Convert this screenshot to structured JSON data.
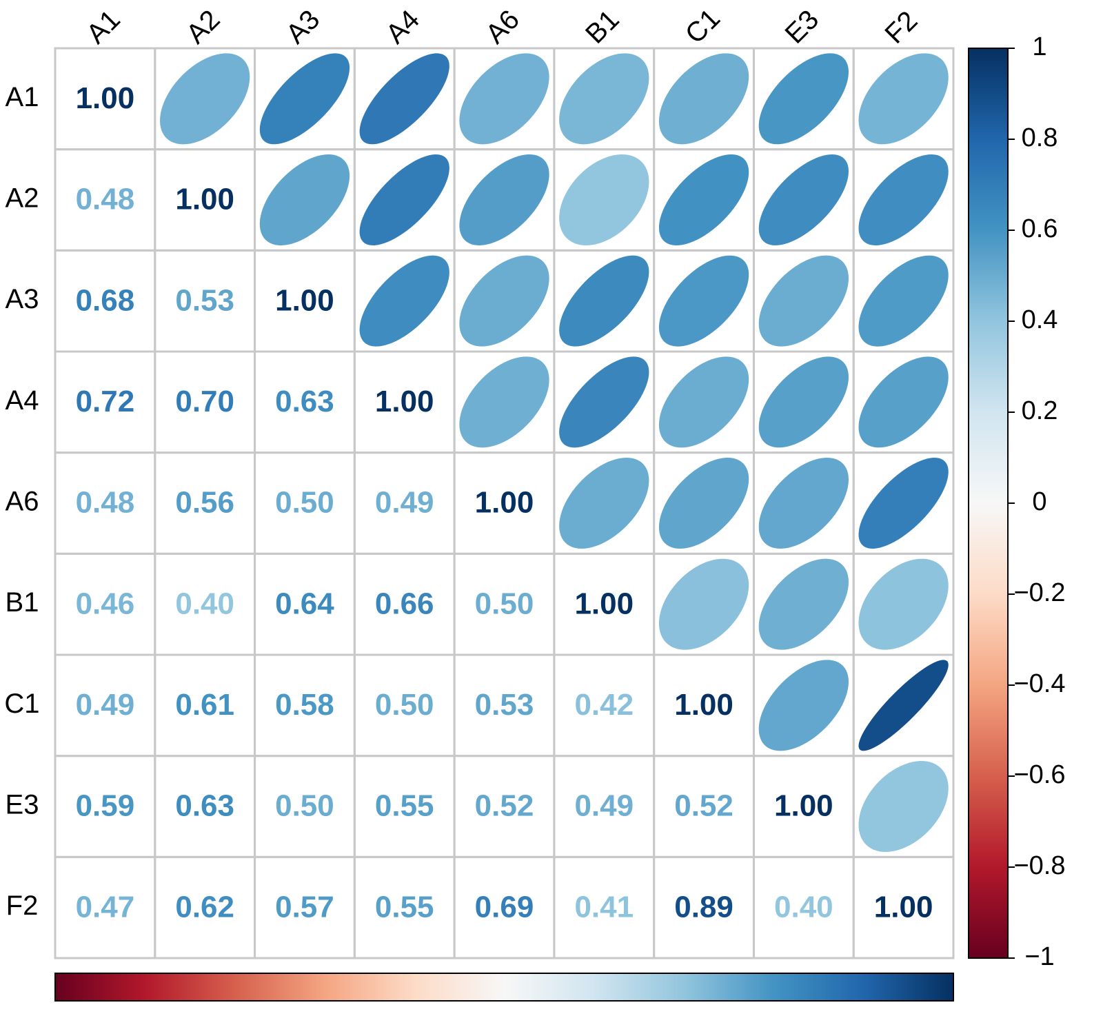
{
  "chart_data": {
    "type": "corrplot",
    "variables": [
      "A1",
      "A2",
      "A3",
      "A4",
      "A6",
      "B1",
      "C1",
      "E3",
      "F2"
    ],
    "matrix": [
      [
        1.0,
        0.48,
        0.68,
        0.72,
        0.48,
        0.46,
        0.49,
        0.59,
        0.47
      ],
      [
        0.48,
        1.0,
        0.53,
        0.7,
        0.56,
        0.4,
        0.61,
        0.63,
        0.62
      ],
      [
        0.68,
        0.53,
        1.0,
        0.63,
        0.5,
        0.64,
        0.58,
        0.5,
        0.57
      ],
      [
        0.72,
        0.7,
        0.63,
        1.0,
        0.49,
        0.66,
        0.5,
        0.55,
        0.55
      ],
      [
        0.48,
        0.56,
        0.5,
        0.49,
        1.0,
        0.5,
        0.53,
        0.52,
        0.69
      ],
      [
        0.46,
        0.4,
        0.64,
        0.66,
        0.5,
        1.0,
        0.42,
        0.49,
        0.41
      ],
      [
        0.49,
        0.61,
        0.58,
        0.5,
        0.53,
        0.42,
        1.0,
        0.52,
        0.89
      ],
      [
        0.59,
        0.63,
        0.5,
        0.55,
        0.52,
        0.49,
        0.52,
        1.0,
        0.4
      ],
      [
        0.47,
        0.62,
        0.57,
        0.55,
        0.69,
        0.41,
        0.89,
        0.4,
        1.0
      ]
    ],
    "value_labels": [
      [
        "1.00",
        null,
        null,
        null,
        null,
        null,
        null,
        null,
        null
      ],
      [
        "0.48",
        "1.00",
        null,
        null,
        null,
        null,
        null,
        null,
        null
      ],
      [
        "0.68",
        "0.53",
        "1.00",
        null,
        null,
        null,
        null,
        null,
        null
      ],
      [
        "0.72",
        "0.70",
        "0.63",
        "1.00",
        null,
        null,
        null,
        null,
        null
      ],
      [
        "0.48",
        "0.56",
        "0.50",
        "0.49",
        "1.00",
        null,
        null,
        null,
        null
      ],
      [
        "0.46",
        "0.40",
        "0.64",
        "0.66",
        "0.50",
        "1.00",
        null,
        null,
        null
      ],
      [
        "0.49",
        "0.61",
        "0.58",
        "0.50",
        "0.53",
        "0.42",
        "1.00",
        null,
        null
      ],
      [
        "0.59",
        "0.63",
        "0.50",
        "0.55",
        "0.52",
        "0.49",
        "0.52",
        "1.00",
        null
      ],
      [
        "0.47",
        "0.62",
        "0.57",
        "0.55",
        "0.69",
        "0.41",
        "0.89",
        "0.40",
        "1.00"
      ]
    ],
    "colors": [
      "#67001F",
      "#B2182B",
      "#D6604D",
      "#F4A582",
      "#FDDBC7",
      "#F7F7F7",
      "#D1E5F0",
      "#92C5DE",
      "#4393C3",
      "#2166AC",
      "#053061"
    ],
    "ylim": [
      -1,
      1
    ],
    "yticks": [
      1,
      0.8,
      0.6,
      0.4,
      0.2,
      0,
      {
        "value": -0.2,
        "label": "−0.2"
      },
      {
        "value": -0.4,
        "label": "−0.4"
      },
      {
        "value": -0.6,
        "label": "−0.6"
      },
      {
        "value": -0.8,
        "label": "−0.8"
      },
      {
        "value": -1,
        "label": "−1"
      }
    ]
  }
}
